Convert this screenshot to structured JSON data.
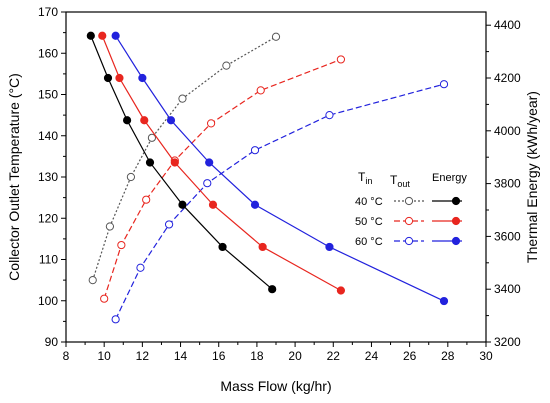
{
  "chart_data": {
    "type": "line",
    "xlabel": "Mass Flow (kg/hr)",
    "ylabel_left": "Collector Outlet Temperature (°C)",
    "ylabel_right": "Thermal Energy (kWh/year)",
    "xlim": [
      8,
      30
    ],
    "ylim_left": [
      90,
      170
    ],
    "ylim_right": [
      3200,
      4450
    ],
    "xticks": [
      8,
      10,
      12,
      14,
      16,
      18,
      20,
      22,
      24,
      26,
      28,
      30
    ],
    "yticks_left": [
      90,
      100,
      110,
      120,
      130,
      140,
      150,
      160,
      170
    ],
    "yticks_right": [
      3200,
      3400,
      3600,
      3800,
      4000,
      4200,
      4400
    ],
    "legend": {
      "position": "right-center",
      "header": [
        "T",
        "in",
        "T",
        "out",
        "Energy"
      ],
      "entries": [
        "40 °C",
        "50 °C",
        "60 °C"
      ]
    },
    "series": [
      {
        "name": "40 °C",
        "group": "Tout",
        "axis": "left",
        "style": "dotted",
        "marker": "open",
        "color": "#555555",
        "x": [
          9.4,
          10.3,
          11.4,
          12.5,
          14.1,
          16.4,
          19.0
        ],
        "values": [
          105,
          118,
          130,
          139.5,
          149,
          157,
          164
        ]
      },
      {
        "name": "50 °C",
        "group": "Tout",
        "axis": "left",
        "style": "dashed",
        "marker": "open",
        "color": "#e8261f",
        "x": [
          10.0,
          10.9,
          12.2,
          13.7,
          15.6,
          18.2,
          22.4
        ],
        "values": [
          100.5,
          113.5,
          124.5,
          134,
          143,
          151,
          158.5
        ]
      },
      {
        "name": "60 °C",
        "group": "Tout",
        "axis": "left",
        "style": "dashed",
        "marker": "open",
        "color": "#2222dd",
        "x": [
          10.6,
          11.9,
          13.4,
          15.4,
          17.9,
          21.8,
          27.8
        ],
        "values": [
          95.5,
          108,
          118.5,
          128.5,
          136.5,
          145,
          152.5
        ]
      },
      {
        "name": "40 °C",
        "group": "Energy",
        "axis": "right",
        "style": "solid",
        "marker": "filled",
        "color": "#000000",
        "x": [
          9.3,
          10.2,
          11.2,
          12.4,
          14.1,
          16.2,
          18.8
        ],
        "values": [
          4360,
          4200,
          4040,
          3880,
          3720,
          3560,
          3400
        ]
      },
      {
        "name": "50 °C",
        "group": "Energy",
        "axis": "right",
        "style": "solid",
        "marker": "filled",
        "color": "#e8261f",
        "x": [
          9.9,
          10.8,
          12.1,
          13.7,
          15.7,
          18.3,
          22.4
        ],
        "values": [
          4360,
          4200,
          4040,
          3880,
          3720,
          3560,
          3395
        ]
      },
      {
        "name": "60 °C",
        "group": "Energy",
        "axis": "right",
        "style": "solid",
        "marker": "filled",
        "color": "#2222dd",
        "x": [
          10.6,
          12.0,
          13.5,
          15.5,
          17.9,
          21.8,
          27.8
        ],
        "values": [
          4360,
          4200,
          4040,
          3880,
          3720,
          3560,
          3355
        ]
      }
    ]
  }
}
